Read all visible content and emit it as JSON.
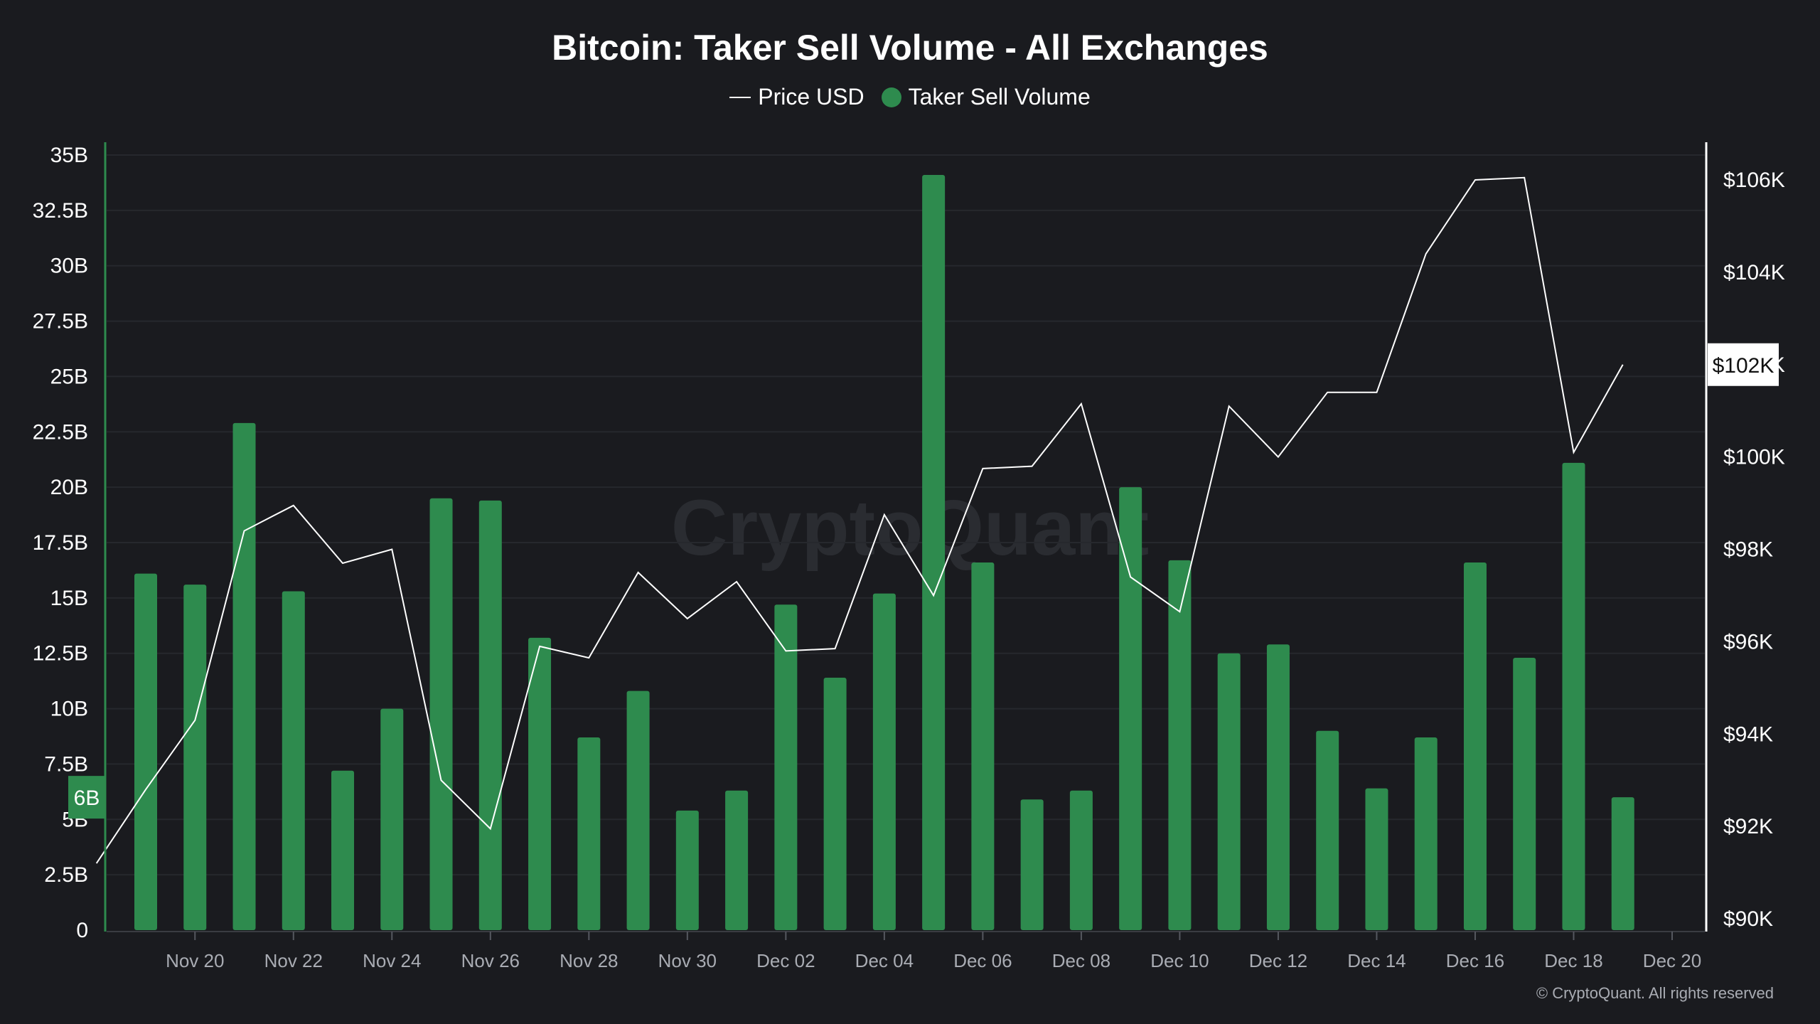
{
  "title": "Bitcoin: Taker Sell Volume - All Exchanges",
  "legend": [
    {
      "label": "Price USD",
      "kind": "line",
      "color": "#ffffff"
    },
    {
      "label": "Taker Sell Volume",
      "kind": "dot",
      "color": "#2e8b4e"
    }
  ],
  "watermark": "CryptoQuant",
  "credit": "© CryptoQuant. All rights reserved",
  "colors": {
    "background": "#1a1b1f",
    "bar": "#2e8b4e",
    "line": "#ffffff",
    "left_axis": "#2e8b4e",
    "right_axis": "#ffffff",
    "grid": "#26282d"
  },
  "chart_data": {
    "type": "bar",
    "grid": true,
    "legend_position": "top-center",
    "x_axis": {
      "type": "date",
      "range": [
        "2024-11-19",
        "2024-12-20"
      ],
      "tick_labels": [
        "Nov 20",
        "Nov 22",
        "Nov 24",
        "Nov 26",
        "Nov 28",
        "Nov 30",
        "Dec 02",
        "Dec 04",
        "Dec 06",
        "Dec 08",
        "Dec 10",
        "Dec 12",
        "Dec 14",
        "Dec 16",
        "Dec 18",
        "Dec 20"
      ],
      "tick_dates": [
        "2024-11-20",
        "2024-11-22",
        "2024-11-24",
        "2024-11-26",
        "2024-11-28",
        "2024-11-30",
        "2024-12-02",
        "2024-12-04",
        "2024-12-06",
        "2024-12-08",
        "2024-12-10",
        "2024-12-12",
        "2024-12-14",
        "2024-12-16",
        "2024-12-18",
        "2024-12-20"
      ]
    },
    "left_axis": {
      "ylim": [
        0,
        35
      ],
      "unit": "B",
      "tick_values": [
        0,
        2.5,
        5,
        7.5,
        10,
        12.5,
        15,
        17.5,
        20,
        22.5,
        25,
        27.5,
        30,
        32.5,
        35
      ],
      "tick_labels": [
        "0",
        "2.5B",
        "5B",
        "7.5B",
        "10B",
        "12.5B",
        "15B",
        "17.5B",
        "20B",
        "22.5B",
        "25B",
        "27.5B",
        "30B",
        "32.5B",
        "35B"
      ],
      "current_badge": "6B",
      "current_value": 6
    },
    "right_axis": {
      "ylim": [
        90000,
        107000
      ],
      "tick_values": [
        90000,
        92000,
        94000,
        96000,
        98000,
        100000,
        102000,
        104000,
        106000
      ],
      "tick_labels": [
        "$90K",
        "$92K",
        "$94K",
        "$96K",
        "$98K",
        "$100K",
        "$102K",
        "$104K",
        "$106K"
      ],
      "current_badge": "$102K",
      "current_value": 102000
    },
    "series": [
      {
        "name": "Taker Sell Volume",
        "type": "bar",
        "axis": "left",
        "color": "#2e8b4e",
        "x": [
          "2024-11-19",
          "2024-11-20",
          "2024-11-21",
          "2024-11-22",
          "2024-11-23",
          "2024-11-24",
          "2024-11-25",
          "2024-11-26",
          "2024-11-27",
          "2024-11-28",
          "2024-11-29",
          "2024-11-30",
          "2024-12-01",
          "2024-12-02",
          "2024-12-03",
          "2024-12-04",
          "2024-12-05",
          "2024-12-06",
          "2024-12-07",
          "2024-12-08",
          "2024-12-09",
          "2024-12-10",
          "2024-12-11",
          "2024-12-12",
          "2024-12-13",
          "2024-12-14",
          "2024-12-15",
          "2024-12-16",
          "2024-12-17",
          "2024-12-18",
          "2024-12-19"
        ],
        "values": [
          16.1,
          15.6,
          22.9,
          15.3,
          7.2,
          10.0,
          19.5,
          19.4,
          13.2,
          8.7,
          10.8,
          5.4,
          6.3,
          14.7,
          11.4,
          15.2,
          34.1,
          16.6,
          5.9,
          6.3,
          20.0,
          16.7,
          12.5,
          12.9,
          9.0,
          6.4,
          8.7,
          16.6,
          12.3,
          21.1,
          6.0
        ]
      },
      {
        "name": "Price USD",
        "type": "line",
        "axis": "right",
        "color": "#ffffff",
        "x": [
          "2024-11-18",
          "2024-11-19",
          "2024-11-20",
          "2024-11-21",
          "2024-11-22",
          "2024-11-23",
          "2024-11-24",
          "2024-11-25",
          "2024-11-26",
          "2024-11-27",
          "2024-11-28",
          "2024-11-29",
          "2024-11-30",
          "2024-12-01",
          "2024-12-02",
          "2024-12-03",
          "2024-12-04",
          "2024-12-05",
          "2024-12-06",
          "2024-12-07",
          "2024-12-08",
          "2024-12-09",
          "2024-12-10",
          "2024-12-11",
          "2024-12-12",
          "2024-12-13",
          "2024-12-14",
          "2024-12-15",
          "2024-12-16",
          "2024-12-17",
          "2024-12-18",
          "2024-12-19"
        ],
        "values": [
          91200,
          92800,
          94300,
          98400,
          98950,
          97700,
          98000,
          93000,
          91950,
          95900,
          95650,
          97500,
          96500,
          97300,
          95800,
          95850,
          98750,
          97000,
          99750,
          99800,
          101150,
          97400,
          96650,
          101100,
          100000,
          101400,
          101400,
          104400,
          106000,
          106050,
          100100,
          102000
        ]
      }
    ]
  }
}
